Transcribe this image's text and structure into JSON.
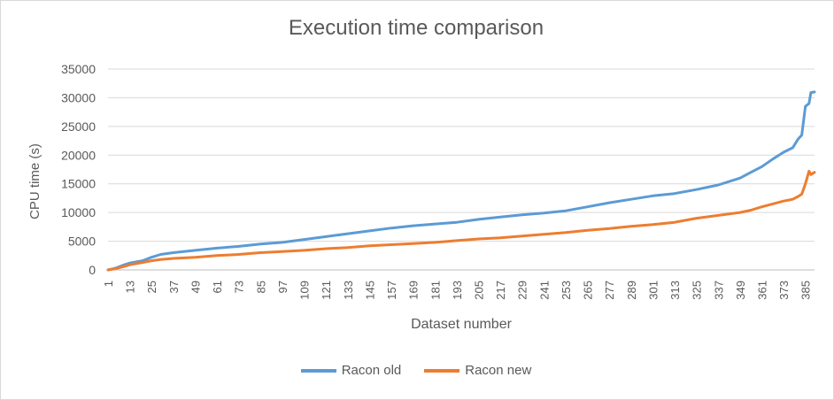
{
  "chart_data": {
    "type": "line",
    "title": "Execution time comparison",
    "xlabel": "Dataset number",
    "ylabel": "CPU time (s)",
    "ylim": [
      0,
      35000
    ],
    "yticks": [
      "0",
      "5000",
      "10000",
      "15000",
      "20000",
      "25000",
      "30000",
      "35000"
    ],
    "xticks": [
      "1",
      "13",
      "25",
      "37",
      "49",
      "61",
      "73",
      "85",
      "97",
      "109",
      "121",
      "133",
      "145",
      "157",
      "169",
      "181",
      "193",
      "205",
      "217",
      "229",
      "241",
      "253",
      "265",
      "277",
      "289",
      "301",
      "313",
      "325",
      "337",
      "349",
      "361",
      "373",
      "385"
    ],
    "xlim": [
      1,
      390
    ],
    "grid": true,
    "legend_position": "bottom",
    "series": [
      {
        "name": "Racon old",
        "color": "#5B9BD5",
        "x": [
          1,
          5,
          10,
          13,
          20,
          25,
          30,
          37,
          49,
          61,
          73,
          85,
          97,
          109,
          121,
          133,
          145,
          157,
          169,
          181,
          193,
          205,
          217,
          229,
          241,
          253,
          265,
          277,
          289,
          301,
          313,
          325,
          337,
          349,
          355,
          361,
          367,
          373,
          378,
          381,
          383,
          385,
          387,
          388,
          390
        ],
        "values": [
          0,
          300,
          900,
          1200,
          1600,
          2200,
          2700,
          3000,
          3400,
          3800,
          4100,
          4500,
          4800,
          5300,
          5800,
          6300,
          6800,
          7300,
          7700,
          8000,
          8300,
          8800,
          9200,
          9600,
          9900,
          10300,
          11000,
          11700,
          12300,
          12900,
          13300,
          14000,
          14800,
          16000,
          17000,
          18000,
          19300,
          20500,
          21300,
          22800,
          23500,
          28500,
          29000,
          30900,
          31000
        ]
      },
      {
        "name": "Racon new",
        "color": "#ED7D31",
        "x": [
          1,
          5,
          10,
          13,
          20,
          25,
          30,
          37,
          49,
          61,
          73,
          85,
          97,
          109,
          121,
          133,
          145,
          157,
          169,
          181,
          193,
          205,
          217,
          229,
          241,
          253,
          265,
          277,
          289,
          301,
          313,
          325,
          337,
          349,
          355,
          361,
          367,
          373,
          378,
          381,
          383,
          385,
          387,
          388,
          390
        ],
        "values": [
          0,
          200,
          600,
          900,
          1300,
          1600,
          1800,
          2000,
          2200,
          2500,
          2700,
          3000,
          3200,
          3400,
          3700,
          3900,
          4200,
          4400,
          4600,
          4800,
          5100,
          5400,
          5600,
          5900,
          6200,
          6500,
          6900,
          7200,
          7600,
          7900,
          8300,
          9000,
          9500,
          10000,
          10400,
          11000,
          11500,
          12000,
          12300,
          12800,
          13200,
          15000,
          17200,
          16600,
          17000
        ]
      }
    ]
  }
}
